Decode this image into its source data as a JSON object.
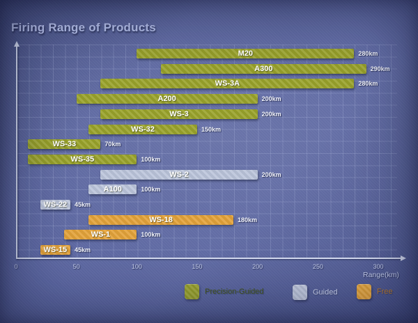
{
  "title": "Firing Range of Products",
  "chart_data": {
    "type": "bar",
    "orientation": "horizontal",
    "title": "Firing Range of Products",
    "xlabel": "Range(km)",
    "xlim": [
      0,
      300
    ],
    "x_ticks": [
      "0",
      "50",
      "100",
      "150",
      "200",
      "250",
      "300"
    ],
    "grid": true,
    "legend_position": "bottom",
    "bars": [
      {
        "name": "M20",
        "start_km": 100,
        "end_km": 280,
        "value_label": "280km",
        "category": "precision"
      },
      {
        "name": "A300",
        "start_km": 120,
        "end_km": 290,
        "value_label": "290km",
        "category": "precision"
      },
      {
        "name": "WS-3A",
        "start_km": 70,
        "end_km": 280,
        "value_label": "280km",
        "category": "precision"
      },
      {
        "name": "A200",
        "start_km": 50,
        "end_km": 200,
        "value_label": "200km",
        "category": "precision"
      },
      {
        "name": "WS-3",
        "start_km": 70,
        "end_km": 200,
        "value_label": "200km",
        "category": "precision"
      },
      {
        "name": "WS-32",
        "start_km": 60,
        "end_km": 150,
        "value_label": "150km",
        "category": "precision"
      },
      {
        "name": "WS-33",
        "start_km": 10,
        "end_km": 70,
        "value_label": "70km",
        "category": "precision"
      },
      {
        "name": "WS-35",
        "start_km": 10,
        "end_km": 100,
        "value_label": "100km",
        "category": "precision"
      },
      {
        "name": "WS-2",
        "start_km": 70,
        "end_km": 200,
        "value_label": "200km",
        "category": "guided"
      },
      {
        "name": "A100",
        "start_km": 60,
        "end_km": 100,
        "value_label": "100km",
        "category": "guided"
      },
      {
        "name": "WS-22",
        "start_km": 20,
        "end_km": 45,
        "value_label": "45km",
        "category": "guided"
      },
      {
        "name": "WS-18",
        "start_km": 60,
        "end_km": 180,
        "value_label": "180km",
        "category": "free"
      },
      {
        "name": "WS-1",
        "start_km": 40,
        "end_km": 100,
        "value_label": "100km",
        "category": "free"
      },
      {
        "name": "WS-15",
        "start_km": 20,
        "end_km": 45,
        "value_label": "45km",
        "category": "free"
      }
    ],
    "colors": {
      "precision": "#9aa32b",
      "guided": "#bcc5db",
      "free": "#e4a33a"
    },
    "legend": [
      {
        "key": "precision",
        "label": "Precision-Guided",
        "swatch_color": "#9aa32b",
        "label_color": "#45561b"
      },
      {
        "key": "guided",
        "label": "Guided",
        "swatch_color": "#bcc5db",
        "label_color": "#c9d0ea"
      },
      {
        "key": "free",
        "label": "Free",
        "swatch_color": "#e4a33a",
        "label_color": "#bd7d2c"
      }
    ]
  }
}
